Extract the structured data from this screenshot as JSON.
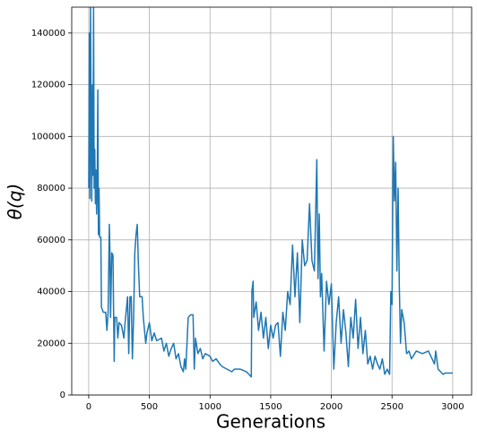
{
  "chart_data": {
    "type": "line",
    "x_label": "Generations",
    "y_label": "θ(q)",
    "xlim": [
      -140,
      3156
    ],
    "ylim": [
      0,
      150000
    ],
    "xticks": [
      0,
      500,
      1000,
      1500,
      2000,
      2500,
      3000
    ],
    "yticks": [
      0,
      20000,
      40000,
      60000,
      80000,
      100000,
      120000,
      140000
    ],
    "grid": true,
    "x": [
      0,
      5,
      10,
      15,
      20,
      25,
      30,
      35,
      40,
      45,
      50,
      55,
      60,
      65,
      70,
      75,
      80,
      85,
      90,
      100,
      105,
      120,
      140,
      150,
      160,
      170,
      175,
      180,
      190,
      200,
      205,
      210,
      215,
      230,
      240,
      250,
      270,
      290,
      300,
      320,
      330,
      340,
      350,
      360,
      370,
      380,
      390,
      400,
      410,
      420,
      440,
      450,
      470,
      480,
      500,
      520,
      540,
      560,
      600,
      620,
      640,
      660,
      680,
      700,
      720,
      740,
      760,
      780,
      790,
      800,
      820,
      840,
      860,
      870,
      880,
      900,
      920,
      940,
      960,
      1000,
      1020,
      1050,
      1080,
      1100,
      1140,
      1180,
      1200,
      1250,
      1300,
      1340,
      1345,
      1355,
      1360,
      1380,
      1400,
      1420,
      1440,
      1460,
      1480,
      1500,
      1520,
      1540,
      1560,
      1580,
      1600,
      1620,
      1640,
      1660,
      1680,
      1700,
      1720,
      1740,
      1760,
      1780,
      1800,
      1820,
      1840,
      1860,
      1880,
      1890,
      1900,
      1910,
      1920,
      1940,
      1960,
      1980,
      2000,
      2020,
      2040,
      2060,
      2080,
      2100,
      2120,
      2140,
      2160,
      2180,
      2200,
      2220,
      2240,
      2260,
      2280,
      2300,
      2320,
      2340,
      2360,
      2380,
      2400,
      2420,
      2440,
      2460,
      2480,
      2490,
      2500,
      2510,
      2520,
      2530,
      2540,
      2550,
      2560,
      2570,
      2580,
      2600,
      2620,
      2640,
      2660,
      2700,
      2750,
      2800,
      2850,
      2860,
      2880,
      2900,
      2920,
      2940,
      3000
    ],
    "series": [
      {
        "color": "#1f77b4",
        "values": [
          80000,
          140000,
          76000,
          150000,
          100000,
          75000,
          120000,
          85000,
          150000,
          80000,
          95000,
          74000,
          87000,
          70000,
          80000,
          118000,
          62000,
          80000,
          61000,
          61000,
          34000,
          32000,
          32000,
          25000,
          32000,
          66000,
          55000,
          30000,
          55000,
          54000,
          33000,
          13000,
          30000,
          30000,
          22000,
          28000,
          27000,
          22000,
          28000,
          38000,
          16000,
          38000,
          38000,
          14000,
          30000,
          55000,
          62000,
          66000,
          50000,
          38000,
          38000,
          30000,
          20000,
          24000,
          28000,
          21000,
          24000,
          21000,
          22000,
          17000,
          20000,
          15000,
          18000,
          20000,
          14000,
          16000,
          11000,
          9000,
          14000,
          10000,
          30000,
          31000,
          31000,
          10000,
          22000,
          16000,
          18000,
          14000,
          16000,
          15000,
          13000,
          14000,
          12000,
          11000,
          10000,
          9000,
          10000,
          10000,
          9000,
          7000,
          40000,
          44000,
          30000,
          36000,
          25000,
          32000,
          22000,
          30000,
          18000,
          27000,
          22000,
          27000,
          28000,
          15000,
          32000,
          25000,
          40000,
          35000,
          58000,
          38000,
          55000,
          28000,
          60000,
          50000,
          52000,
          74000,
          52000,
          48000,
          91000,
          45000,
          70000,
          38000,
          47000,
          17000,
          44000,
          35000,
          43000,
          10000,
          28000,
          38000,
          20000,
          33000,
          24000,
          11000,
          30000,
          22000,
          37000,
          18000,
          30000,
          16000,
          25000,
          12000,
          15000,
          10000,
          15000,
          12000,
          10000,
          14000,
          8000,
          10000,
          8000,
          40000,
          35000,
          100000,
          75000,
          90000,
          48000,
          80000,
          42000,
          20000,
          33000,
          28000,
          16000,
          17000,
          14000,
          17000,
          16000,
          17000,
          12000,
          17000,
          10000,
          9000,
          8000,
          8500,
          8500
        ]
      }
    ]
  }
}
